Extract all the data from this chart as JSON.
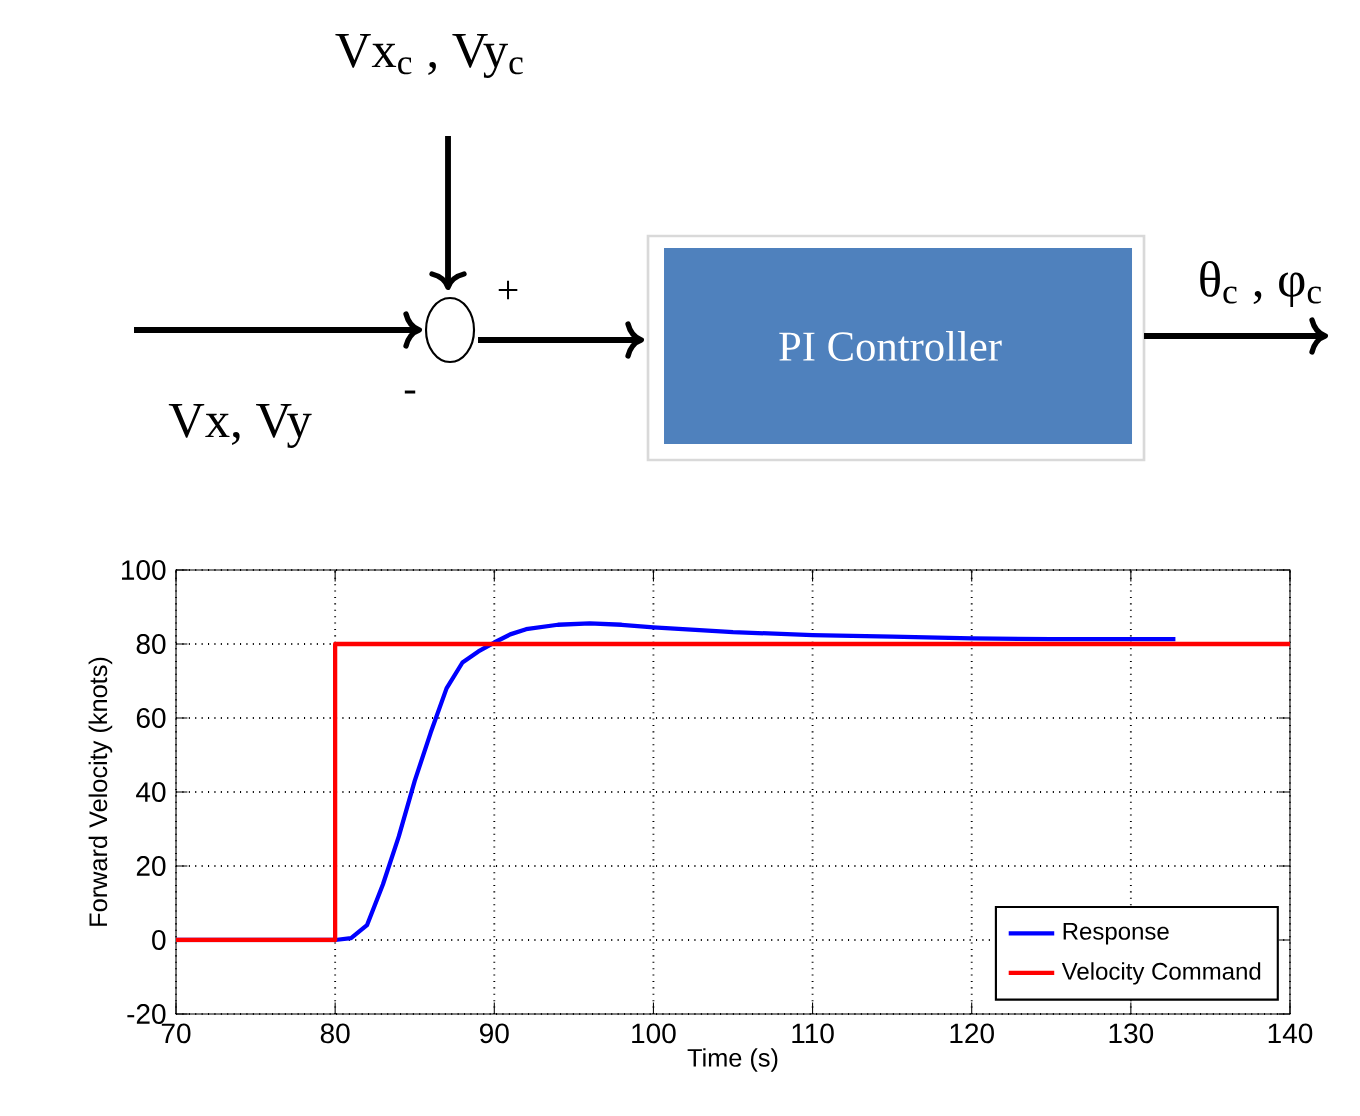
{
  "chart_data": [
    {
      "type": "other",
      "annotations": [
        "Vx$_{c}$ , Vy$_{c}$",
        "+",
        "-",
        "Vx, Vy",
        "PI Controller",
        "θ$_{c}$ , φ$_{c}$"
      ]
    },
    {
      "type": "line",
      "xlabel": "Time (s)",
      "ylabel": "Forward Velocity (knots)",
      "xlim": [
        70,
        140
      ],
      "ylim": [
        -20,
        100
      ],
      "xticks": [
        70,
        80,
        90,
        100,
        110,
        120,
        130,
        140
      ],
      "yticks": [
        -20,
        0,
        20,
        40,
        60,
        80,
        100
      ],
      "grid": true,
      "legend": "bottom right",
      "line_style": "solid",
      "marker": "none",
      "series": [
        {
          "name": "Response",
          "color": "#0000ff",
          "x": [
            70,
            80,
            81,
            82,
            83,
            84,
            85,
            86,
            87,
            88,
            89,
            90,
            91,
            92,
            94,
            96,
            98,
            100,
            105,
            110,
            115,
            120,
            125,
            132.8
          ],
          "values": [
            0,
            0,
            0.5,
            4,
            15,
            28,
            43,
            56,
            68,
            75,
            78,
            80.4,
            82.6,
            84,
            85.2,
            85.6,
            85.2,
            84.5,
            83.2,
            82.4,
            82,
            81.5,
            81.3,
            81.3
          ]
        },
        {
          "name": "Velocity Command",
          "color": "#ff0000",
          "x": [
            70,
            80,
            80,
            140
          ],
          "values": [
            0,
            0,
            80,
            80
          ]
        }
      ]
    }
  ]
}
